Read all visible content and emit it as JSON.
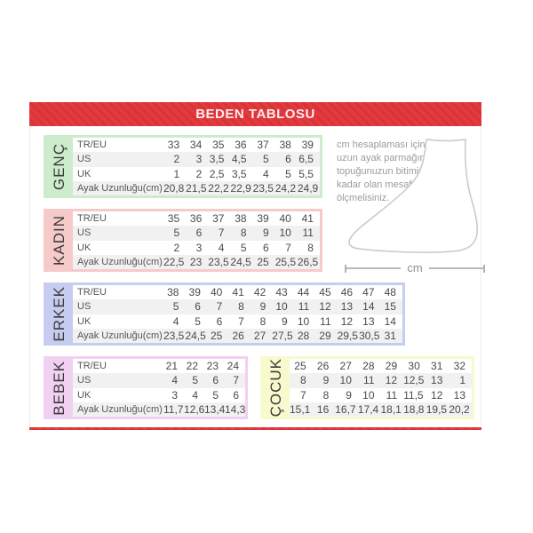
{
  "title": "BEDEN TABLOSU",
  "note": "cm hesaplaması için en uzun ayak parmağınızdan topuğunuzun bitimine kadar olan mesafeyi ölçmelisiniz.",
  "measure_label": "cm",
  "icons": {
    "foot": "foot-outline-icon"
  },
  "colors": {
    "accent_red": "#e23a3e",
    "accent_red_dark": "#d93237",
    "row_alt": "#f1f1f1",
    "genc": "#cceccc",
    "kadin": "#f7caca",
    "erkek": "#c7cdf0",
    "bebek": "#f1d0f1",
    "cocuk": "#f9f9ce"
  },
  "sections": [
    {
      "id": "genc",
      "label": "GENÇ",
      "color": "#cceccc",
      "rows": [
        {
          "label": "TR/EU",
          "values": [
            "33",
            "34",
            "35",
            "36",
            "37",
            "38",
            "39"
          ]
        },
        {
          "label": "US",
          "values": [
            "2",
            "3",
            "3,5",
            "4,5",
            "5",
            "6",
            "6,5"
          ]
        },
        {
          "label": "UK",
          "values": [
            "1",
            "2",
            "2,5",
            "3,5",
            "4",
            "5",
            "5,5"
          ]
        },
        {
          "label": "Ayak Uzunluğu(cm)",
          "values": [
            "20,8",
            "21,5",
            "22,2",
            "22,9",
            "23,5",
            "24,2",
            "24,9"
          ]
        }
      ]
    },
    {
      "id": "kadin",
      "label": "KADIN",
      "color": "#f7caca",
      "rows": [
        {
          "label": "TR/EU",
          "values": [
            "35",
            "36",
            "37",
            "38",
            "39",
            "40",
            "41"
          ]
        },
        {
          "label": "US",
          "values": [
            "5",
            "6",
            "7",
            "8",
            "9",
            "10",
            "11"
          ]
        },
        {
          "label": "UK",
          "values": [
            "2",
            "3",
            "4",
            "5",
            "6",
            "7",
            "8"
          ]
        },
        {
          "label": "Ayak Uzunluğu(cm)",
          "values": [
            "22,5",
            "23",
            "23,5",
            "24,5",
            "25",
            "25,5",
            "26,5"
          ]
        }
      ]
    },
    {
      "id": "erkek",
      "label": "ERKEK",
      "color": "#c7cdf0",
      "rows": [
        {
          "label": "TR/EU",
          "values": [
            "38",
            "39",
            "40",
            "41",
            "42",
            "43",
            "44",
            "45",
            "46",
            "47",
            "48"
          ]
        },
        {
          "label": "US",
          "values": [
            "5",
            "6",
            "7",
            "8",
            "9",
            "10",
            "11",
            "12",
            "13",
            "14",
            "15"
          ]
        },
        {
          "label": "UK",
          "values": [
            "4",
            "5",
            "6",
            "7",
            "8",
            "9",
            "10",
            "11",
            "12",
            "13",
            "14"
          ]
        },
        {
          "label": "Ayak Uzunluğu(cm)",
          "values": [
            "23,5",
            "24,5",
            "25",
            "26",
            "27",
            "27,5",
            "28",
            "29",
            "29,5",
            "30,5",
            "31"
          ]
        }
      ]
    },
    {
      "id": "bebek",
      "label": "BEBEK",
      "color": "#f1d0f1",
      "rows": [
        {
          "label": "TR/EU",
          "values": [
            "21",
            "22",
            "23",
            "24"
          ]
        },
        {
          "label": "US",
          "values": [
            "4",
            "5",
            "6",
            "7"
          ]
        },
        {
          "label": "UK",
          "values": [
            "3",
            "4",
            "5",
            "6"
          ]
        },
        {
          "label": "Ayak Uzunluğu(cm)",
          "values": [
            "11,7",
            "12,6",
            "13,4",
            "14,3"
          ]
        }
      ]
    },
    {
      "id": "cocuk",
      "label": "ÇOCUK",
      "color": "#f9f9ce",
      "rows": [
        {
          "values": [
            "25",
            "26",
            "27",
            "28",
            "29",
            "30",
            "31",
            "32"
          ]
        },
        {
          "values": [
            "8",
            "9",
            "10",
            "11",
            "12",
            "12,5",
            "13",
            "1"
          ]
        },
        {
          "values": [
            "7",
            "8",
            "9",
            "10",
            "11",
            "11,5",
            "12",
            "13"
          ]
        },
        {
          "values": [
            "15,1",
            "16",
            "16,7",
            "17,4",
            "18,1",
            "18,8",
            "19,5",
            "20,2"
          ]
        }
      ]
    }
  ]
}
